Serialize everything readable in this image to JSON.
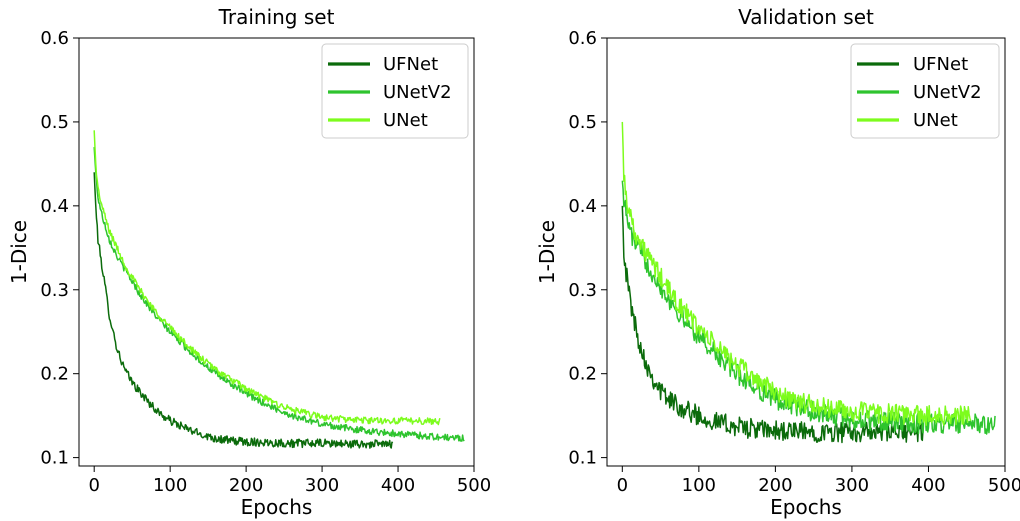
{
  "figure": {
    "background": "#ffffff"
  },
  "chart_data": [
    {
      "type": "line",
      "title": "Training set",
      "xlabel": "Epochs",
      "ylabel": "1-Dice",
      "xlim": [
        -20,
        500
      ],
      "ylim": [
        0.09,
        0.6
      ],
      "xticks": [
        0,
        100,
        200,
        300,
        400,
        500
      ],
      "yticks": [
        0.1,
        0.2,
        0.3,
        0.4,
        0.5,
        0.6
      ],
      "xtick_labels": [
        "0",
        "100",
        "200",
        "300",
        "400",
        "500"
      ],
      "ytick_labels": [
        "0.1",
        "0.2",
        "0.3",
        "0.4",
        "0.5",
        "0.6"
      ],
      "grid": false,
      "legend": "upper right",
      "series": [
        {
          "name": "UFNet",
          "color": "#0b6b0b",
          "x_max": 393,
          "x": [
            0,
            2,
            5,
            10,
            15,
            20,
            25,
            30,
            40,
            50,
            60,
            70,
            80,
            90,
            100,
            120,
            140,
            160,
            180,
            200,
            230,
            260,
            300,
            350,
            393
          ],
          "y": [
            0.44,
            0.4,
            0.36,
            0.33,
            0.3,
            0.27,
            0.25,
            0.23,
            0.205,
            0.19,
            0.178,
            0.168,
            0.158,
            0.15,
            0.144,
            0.135,
            0.128,
            0.123,
            0.12,
            0.119,
            0.118,
            0.117,
            0.117,
            0.116,
            0.116
          ],
          "noise": 0.005
        },
        {
          "name": "UNetV2",
          "color": "#2ec42e",
          "x_max": 487,
          "x": [
            0,
            2,
            5,
            10,
            20,
            30,
            40,
            60,
            80,
            100,
            120,
            140,
            160,
            180,
            200,
            230,
            260,
            300,
            340,
            380,
            420,
            460,
            487
          ],
          "y": [
            0.47,
            0.44,
            0.41,
            0.39,
            0.36,
            0.34,
            0.325,
            0.295,
            0.27,
            0.25,
            0.232,
            0.215,
            0.2,
            0.188,
            0.176,
            0.162,
            0.15,
            0.14,
            0.134,
            0.13,
            0.127,
            0.124,
            0.123
          ],
          "noise": 0.004
        },
        {
          "name": "UNet",
          "color": "#7dfc1d",
          "x_max": 455,
          "x": [
            0,
            2,
            5,
            10,
            20,
            30,
            40,
            60,
            80,
            100,
            120,
            140,
            160,
            180,
            200,
            230,
            260,
            300,
            340,
            380,
            420,
            455
          ],
          "y": [
            0.49,
            0.45,
            0.42,
            0.4,
            0.37,
            0.35,
            0.33,
            0.3,
            0.275,
            0.255,
            0.236,
            0.219,
            0.205,
            0.193,
            0.182,
            0.168,
            0.157,
            0.148,
            0.145,
            0.144,
            0.144,
            0.143
          ],
          "noise": 0.004
        }
      ]
    },
    {
      "type": "line",
      "title": "Validation set",
      "xlabel": "Epochs",
      "ylabel": "1-Dice",
      "xlim": [
        -20,
        500
      ],
      "ylim": [
        0.09,
        0.6
      ],
      "xticks": [
        0,
        100,
        200,
        300,
        400,
        500
      ],
      "yticks": [
        0.1,
        0.2,
        0.3,
        0.4,
        0.5,
        0.6
      ],
      "xtick_labels": [
        "0",
        "100",
        "200",
        "300",
        "400",
        "500"
      ],
      "ytick_labels": [
        "0.1",
        "0.2",
        "0.3",
        "0.4",
        "0.5",
        "0.6"
      ],
      "grid": false,
      "legend": "upper right",
      "series": [
        {
          "name": "UFNet",
          "color": "#0b6b0b",
          "x_max": 393,
          "x": [
            0,
            2,
            5,
            10,
            15,
            20,
            30,
            40,
            50,
            60,
            80,
            100,
            120,
            150,
            180,
            220,
            260,
            300,
            340,
            393
          ],
          "y": [
            0.4,
            0.35,
            0.32,
            0.29,
            0.265,
            0.245,
            0.215,
            0.195,
            0.18,
            0.17,
            0.158,
            0.15,
            0.143,
            0.137,
            0.133,
            0.131,
            0.13,
            0.13,
            0.13,
            0.13
          ],
          "noise": 0.012
        },
        {
          "name": "UNetV2",
          "color": "#2ec42e",
          "x_max": 487,
          "x": [
            0,
            2,
            5,
            10,
            20,
            30,
            40,
            60,
            80,
            100,
            120,
            150,
            180,
            200,
            230,
            260,
            300,
            350,
            400,
            450,
            487
          ],
          "y": [
            0.43,
            0.41,
            0.39,
            0.37,
            0.35,
            0.335,
            0.32,
            0.29,
            0.265,
            0.245,
            0.225,
            0.2,
            0.18,
            0.17,
            0.16,
            0.152,
            0.146,
            0.142,
            0.14,
            0.14,
            0.14
          ],
          "noise": 0.012
        },
        {
          "name": "UNet",
          "color": "#7dfc1d",
          "x_max": 455,
          "x": [
            0,
            2,
            5,
            10,
            20,
            30,
            40,
            60,
            80,
            100,
            120,
            150,
            180,
            200,
            230,
            260,
            300,
            350,
            400,
            455
          ],
          "y": [
            0.5,
            0.44,
            0.41,
            0.39,
            0.36,
            0.345,
            0.33,
            0.3,
            0.275,
            0.255,
            0.235,
            0.21,
            0.19,
            0.178,
            0.166,
            0.16,
            0.155,
            0.152,
            0.15,
            0.15
          ],
          "noise": 0.012
        }
      ]
    }
  ]
}
